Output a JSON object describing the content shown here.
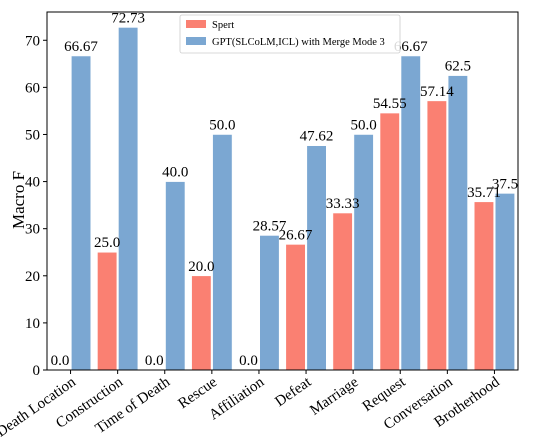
{
  "chart_data": {
    "type": "bar",
    "title": "",
    "xlabel": "",
    "ylabel": "Macro F",
    "ylim": [
      0,
      76
    ],
    "yticks": [
      0,
      10,
      20,
      30,
      40,
      50,
      60,
      70
    ],
    "grid": false,
    "legend_position": "top-center",
    "categories": [
      "Death Location",
      "Construction",
      "Time of Death",
      "Rescue",
      "Affiliation",
      "Defeat",
      "Marriage",
      "Request",
      "Conversation",
      "Brotherhood"
    ],
    "series": [
      {
        "name": "Spert",
        "color": "#fa8072",
        "values": [
          0.0,
          25.0,
          0.0,
          20.0,
          0.0,
          26.67,
          33.33,
          54.55,
          57.14,
          35.71
        ],
        "labels": [
          "0.0",
          "25.0",
          "0.0",
          "20.0",
          "0.0",
          "26.67",
          "33.33",
          "54.55",
          "57.14",
          "35.71"
        ]
      },
      {
        "name": "GPT(SLCoLM,ICL) with Merge Mode 3",
        "color": "#7ba7d2",
        "values": [
          66.67,
          72.73,
          40.0,
          50.0,
          28.57,
          47.62,
          50.0,
          66.67,
          62.5,
          37.5
        ],
        "labels": [
          "66.67",
          "72.73",
          "40.0",
          "50.0",
          "28.57",
          "47.62",
          "50.0",
          "66.67",
          "62.5",
          "37.5"
        ]
      }
    ]
  }
}
